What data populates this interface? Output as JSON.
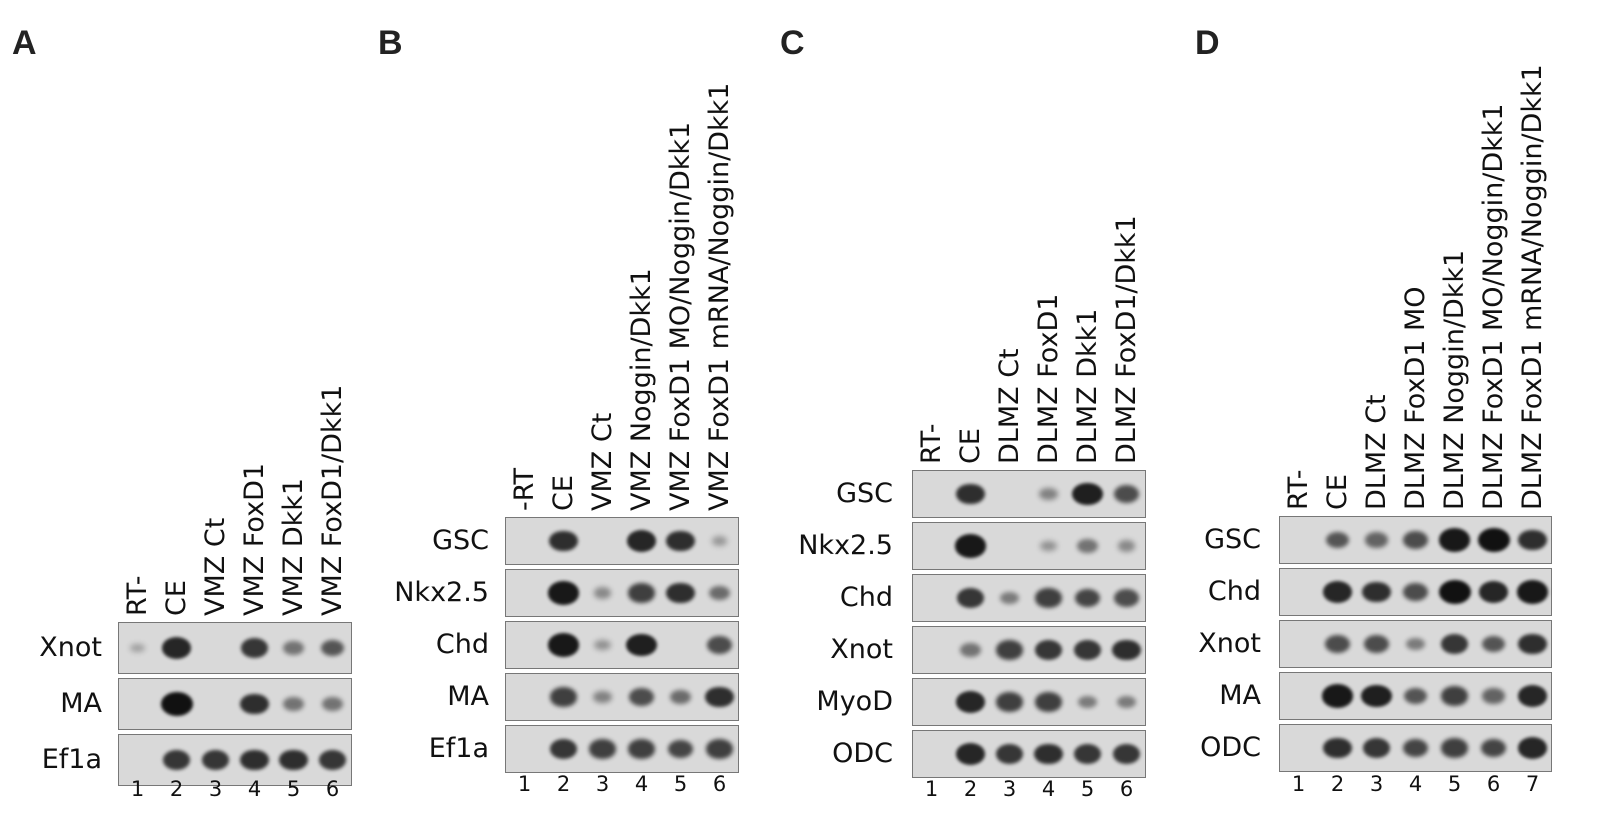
{
  "panels": [
    {
      "letter": "A",
      "lanes": [
        "RT-",
        "CE",
        "VMZ Ct",
        "VMZ FoxD1",
        "VMZ Dkk1",
        "VMZ FoxD1/Dkk1"
      ],
      "numbers": [
        "1",
        "2",
        "3",
        "4",
        "5",
        "6"
      ],
      "rows": [
        {
          "gene": "Xnot",
          "bands": [
            0.05,
            0.85,
            0,
            0.75,
            0.35,
            0.55
          ]
        },
        {
          "gene": "MA",
          "bands": [
            0,
            1.0,
            0,
            0.8,
            0.35,
            0.35
          ]
        },
        {
          "gene": "Ef1a",
          "bands": [
            0,
            0.75,
            0.75,
            0.8,
            0.8,
            0.75
          ]
        }
      ]
    },
    {
      "letter": "B",
      "lanes": [
        "-RT",
        "CE",
        "VMZ Ct",
        "VMZ Noggin/Dkk1",
        "VMZ FoxD1 MO/Noggin/Dkk1",
        "VMZ FoxD1 mRNA/Noggin/Dkk1"
      ],
      "numbers": [
        "1",
        "2",
        "3",
        "4",
        "5",
        "6"
      ],
      "rows": [
        {
          "gene": "GSC",
          "bands": [
            0,
            0.8,
            0,
            0.85,
            0.8,
            0.1
          ]
        },
        {
          "gene": "Nkx2.5",
          "bands": [
            0,
            0.95,
            0.2,
            0.7,
            0.8,
            0.4
          ]
        },
        {
          "gene": "Chd",
          "bands": [
            0,
            0.95,
            0.15,
            0.9,
            0,
            0.6
          ]
        },
        {
          "gene": "MA",
          "bands": [
            0,
            0.7,
            0.25,
            0.6,
            0.4,
            0.8
          ]
        },
        {
          "gene": "Ef1a",
          "bands": [
            0,
            0.75,
            0.7,
            0.7,
            0.65,
            0.7
          ]
        }
      ]
    },
    {
      "letter": "C",
      "lanes": [
        "RT-",
        "CE",
        "DLMZ Ct",
        "DLMZ FoxD1",
        "DLMZ Dkk1",
        "DLMZ FoxD1/Dkk1"
      ],
      "numbers": [
        "1",
        "2",
        "3",
        "4",
        "5",
        "6"
      ],
      "rows": [
        {
          "gene": "GSC",
          "bands": [
            0,
            0.8,
            0,
            0.25,
            0.9,
            0.6
          ]
        },
        {
          "gene": "Nkx2.5",
          "bands": [
            0,
            0.95,
            0,
            0.15,
            0.35,
            0.2
          ]
        },
        {
          "gene": "Chd",
          "bands": [
            0,
            0.75,
            0.3,
            0.7,
            0.65,
            0.6
          ]
        },
        {
          "gene": "Xnot",
          "bands": [
            0,
            0.35,
            0.7,
            0.75,
            0.75,
            0.8
          ]
        },
        {
          "gene": "MyoD",
          "bands": [
            0,
            0.85,
            0.7,
            0.7,
            0.3,
            0.3
          ]
        },
        {
          "gene": "ODC",
          "bands": [
            0,
            0.85,
            0.75,
            0.8,
            0.75,
            0.75
          ]
        }
      ]
    },
    {
      "letter": "D",
      "lanes": [
        "RT-",
        "CE",
        "DLMZ Ct",
        "DLMZ FoxD1 MO",
        "DLMZ Noggin/Dkk1",
        "DLMZ FoxD1 MO/Noggin/Dkk1",
        "DLMZ FoxD1 mRNA/Noggin/Dkk1"
      ],
      "numbers": [
        "1",
        "2",
        "3",
        "4",
        "5",
        "6",
        "7"
      ],
      "rows": [
        {
          "gene": "GSC",
          "bands": [
            0,
            0.55,
            0.45,
            0.6,
            0.95,
            1.0,
            0.8
          ]
        },
        {
          "gene": "Chd",
          "bands": [
            0,
            0.85,
            0.8,
            0.6,
            1.0,
            0.85,
            0.95
          ]
        },
        {
          "gene": "Xnot",
          "bands": [
            0,
            0.6,
            0.6,
            0.3,
            0.75,
            0.55,
            0.8
          ]
        },
        {
          "gene": "MA",
          "bands": [
            0,
            0.95,
            0.9,
            0.55,
            0.7,
            0.45,
            0.85
          ]
        },
        {
          "gene": "ODC",
          "bands": [
            0,
            0.8,
            0.75,
            0.65,
            0.7,
            0.65,
            0.85
          ]
        }
      ]
    }
  ]
}
